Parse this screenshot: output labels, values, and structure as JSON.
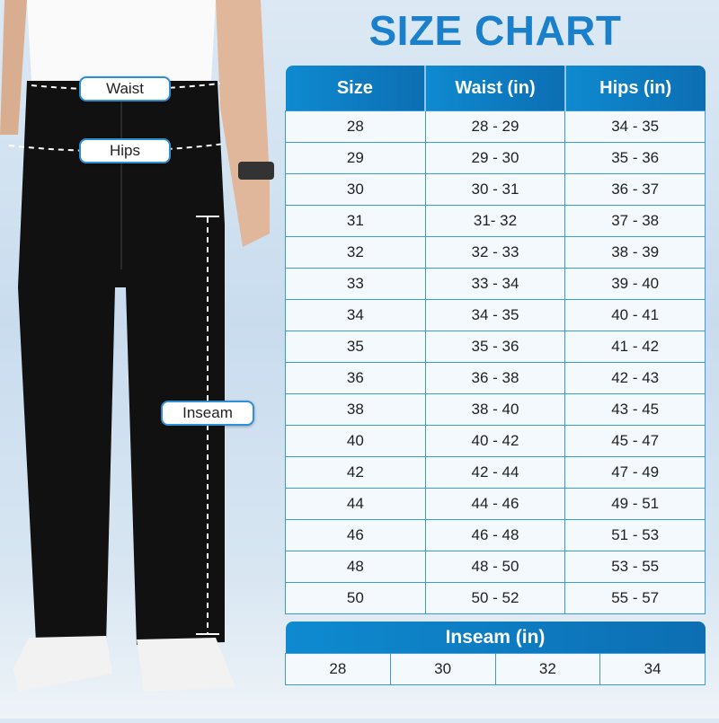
{
  "title": "SIZE CHART",
  "figure_labels": {
    "waist": "Waist",
    "hips": "Hips",
    "inseam": "Inseam"
  },
  "table": {
    "headers": [
      "Size",
      "Waist (in)",
      "Hips (in)"
    ],
    "rows": [
      [
        "28",
        "28 - 29",
        "34 - 35"
      ],
      [
        "29",
        "29 - 30",
        "35 - 36"
      ],
      [
        "30",
        "30 - 31",
        "36 - 37"
      ],
      [
        "31",
        "31- 32",
        "37 - 38"
      ],
      [
        "32",
        "32 - 33",
        "38 - 39"
      ],
      [
        "33",
        "33 - 34",
        "39 - 40"
      ],
      [
        "34",
        "34 - 35",
        "40 - 41"
      ],
      [
        "35",
        "35 - 36",
        "41 - 42"
      ],
      [
        "36",
        "36 - 38",
        "42 - 43"
      ],
      [
        "38",
        "38 - 40",
        "43 - 45"
      ],
      [
        "40",
        "40 - 42",
        "45 - 47"
      ],
      [
        "42",
        "42 - 44",
        "47 - 49"
      ],
      [
        "44",
        "44 - 46",
        "49 - 51"
      ],
      [
        "46",
        "46 - 48",
        "51 - 53"
      ],
      [
        "48",
        "48 - 50",
        "53 - 55"
      ],
      [
        "50",
        "50 - 52",
        "55 - 57"
      ]
    ]
  },
  "inseam": {
    "header": "Inseam (in)",
    "values": [
      "28",
      "30",
      "32",
      "34"
    ]
  },
  "colors": {
    "accent": "#1a80cc",
    "header": "#0e7cc2",
    "cell": "#f4f9fd",
    "border": "#3a9ad6"
  }
}
